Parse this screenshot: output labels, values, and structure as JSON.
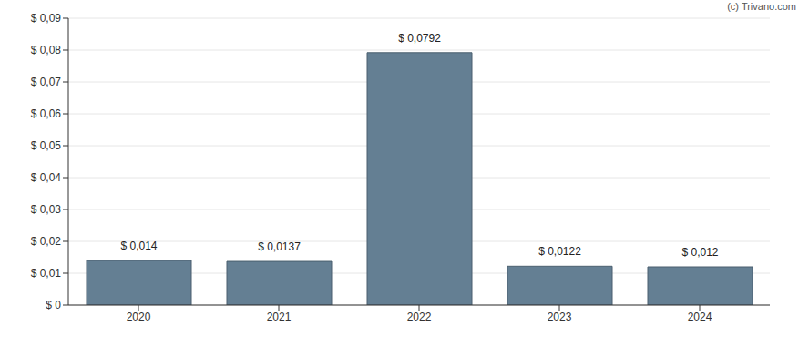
{
  "chart_data": {
    "type": "bar",
    "annotation": "(c) Trivano.com",
    "categories": [
      "2020",
      "2021",
      "2022",
      "2023",
      "2024"
    ],
    "values": [
      0.014,
      0.0137,
      0.0792,
      0.0122,
      0.012
    ],
    "value_labels": [
      "$ 0,014",
      "$ 0,0137",
      "$ 0,0792",
      "$ 0,0122",
      "$ 0,012"
    ],
    "data_labels": true,
    "color": "#647f93",
    "ylim": [
      0,
      0.09
    ],
    "yticks": [
      {
        "value": 0,
        "label": "$ 0"
      },
      {
        "value": 0.01,
        "label": "$ 0,01"
      },
      {
        "value": 0.02,
        "label": "$ 0,02"
      },
      {
        "value": 0.03,
        "label": "$ 0,03"
      },
      {
        "value": 0.04,
        "label": "$ 0,04"
      },
      {
        "value": 0.05,
        "label": "$ 0,05"
      },
      {
        "value": 0.06,
        "label": "$ 0,06"
      },
      {
        "value": 0.07,
        "label": "$ 0,07"
      },
      {
        "value": 0.08,
        "label": "$ 0,08"
      },
      {
        "value": 0.09,
        "label": "$ 0,09"
      }
    ],
    "grid": true
  }
}
